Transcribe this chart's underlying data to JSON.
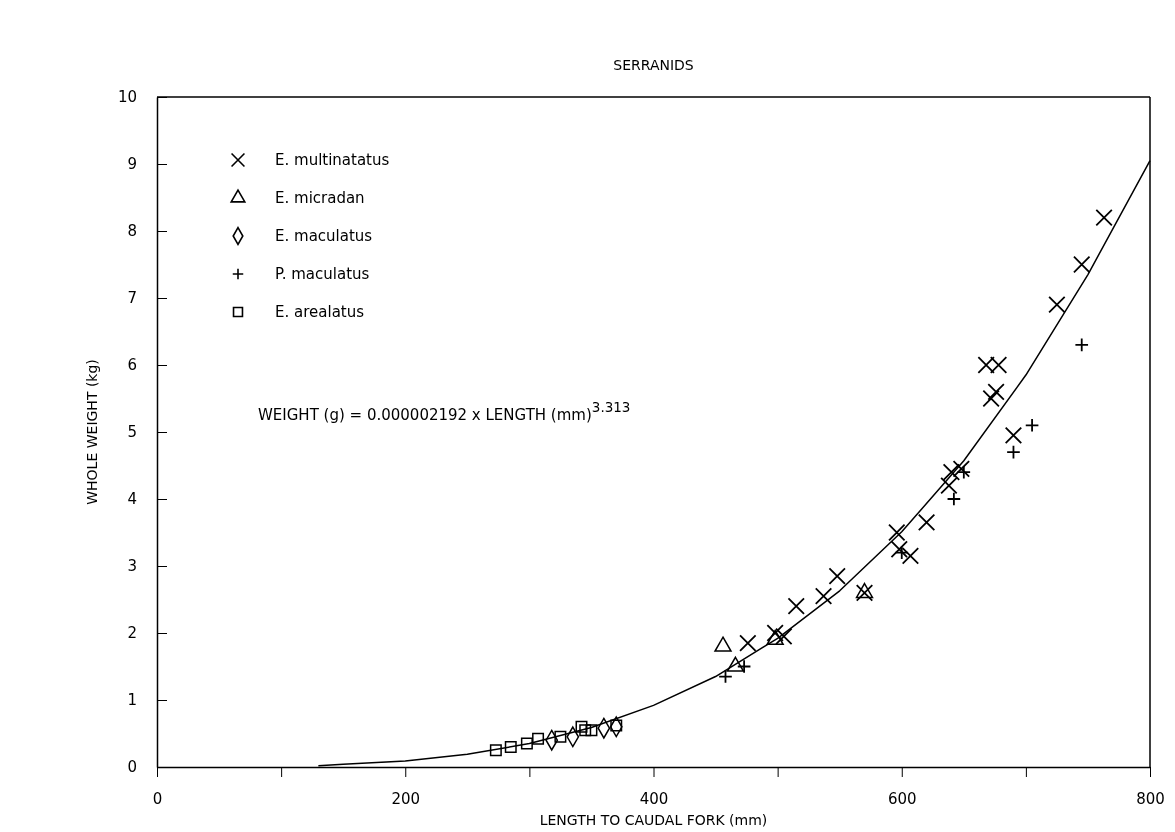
{
  "chart_data": {
    "type": "scatter",
    "title": "SERRANIDS",
    "xlabel": "LENGTH TO CAUDAL FORK (mm)",
    "ylabel": "WHOLE WEIGHT (kg)",
    "xlim": [
      0,
      800
    ],
    "ylim": [
      0,
      10
    ],
    "xticks": [
      0,
      {
        "value": 100,
        "label": null
      },
      200,
      {
        "value": 300,
        "label": null
      },
      400,
      {
        "value": 500,
        "label": null
      },
      600,
      {
        "value": 700,
        "label": null
      },
      800
    ],
    "yticks": [
      0,
      1,
      2,
      3,
      4,
      5,
      6,
      7,
      8,
      9,
      10
    ],
    "grid": false,
    "legend": "top left",
    "annotations": [
      "WEIGHT (g) = 0.000002192 x LENGTH (mm)$^{3.313}$"
    ],
    "series": [
      {
        "name": "E. multinatatus",
        "color": "#000000",
        "marker": "cross",
        "x": [
          763,
          745,
          725,
          668,
          678,
          672,
          676,
          690,
          640,
          648,
          638,
          620,
          596,
          598,
          607,
          570,
          548,
          537,
          515,
          505,
          498,
          476
        ],
        "values": [
          8.2,
          7.5,
          6.9,
          6.0,
          6.0,
          5.5,
          5.6,
          4.95,
          4.4,
          4.45,
          4.2,
          3.65,
          3.5,
          3.25,
          3.15,
          2.6,
          2.85,
          2.55,
          2.4,
          1.95,
          2.0,
          1.85
        ]
      },
      {
        "name": "E. micradan",
        "color": "#000000",
        "marker": "triangle",
        "x": [
          456,
          498,
          570,
          466
        ],
        "values": [
          1.8,
          1.9,
          2.6,
          1.5
        ]
      },
      {
        "name": "E. maculatus",
        "color": "#000000",
        "marker": "diamond",
        "x": [
          318,
          335,
          360,
          370
        ],
        "values": [
          0.4,
          0.45,
          0.58,
          0.6
        ]
      },
      {
        "name": "P. maculatus",
        "color": "#000000",
        "marker": "plus",
        "x": [
          745,
          705,
          690,
          642,
          650,
          600,
          473,
          458
        ],
        "values": [
          6.3,
          5.1,
          4.7,
          4.0,
          4.4,
          3.2,
          1.5,
          1.35
        ]
      },
      {
        "name": "E. arealatus",
        "color": "#000000",
        "marker": "square",
        "x": [
          273,
          285,
          298,
          307,
          325,
          345,
          350,
          370,
          342
        ],
        "values": [
          0.25,
          0.3,
          0.35,
          0.42,
          0.45,
          0.55,
          0.55,
          0.62,
          0.6
        ]
      },
      {
        "type": "line",
        "color": "#000000",
        "line_style": "solid",
        "x": [
          130,
          150,
          200,
          250,
          300,
          350,
          400,
          450,
          500,
          550,
          600,
          650,
          700,
          750,
          800
        ],
        "values": [
          0.02,
          0.04,
          0.09,
          0.19,
          0.35,
          0.59,
          0.92,
          1.35,
          1.92,
          2.63,
          3.51,
          4.57,
          5.85,
          7.35,
          9.05
        ]
      }
    ]
  }
}
